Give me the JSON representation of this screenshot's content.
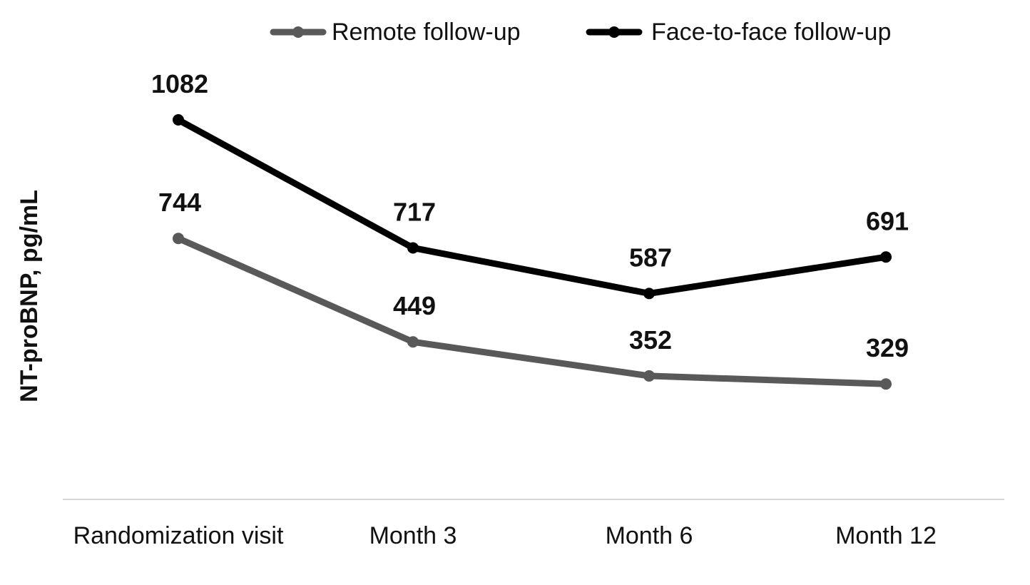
{
  "chart_data": {
    "type": "line",
    "title": "",
    "xlabel": "",
    "ylabel": "NT-proBNP, pg/mL",
    "categories": [
      "Randomization visit",
      "Month 3",
      "Month 6",
      "Month 12"
    ],
    "series": [
      {
        "name": "Remote follow-up",
        "values": [
          744,
          449,
          352,
          329
        ],
        "color": "#595959"
      },
      {
        "name": "Face-to-face follow-up",
        "values": [
          1082,
          717,
          587,
          691
        ],
        "color": "#000000"
      }
    ],
    "ylim": [
      0,
      1200
    ],
    "grid": false,
    "legend": "top-center",
    "y_ticks_shown": false
  }
}
